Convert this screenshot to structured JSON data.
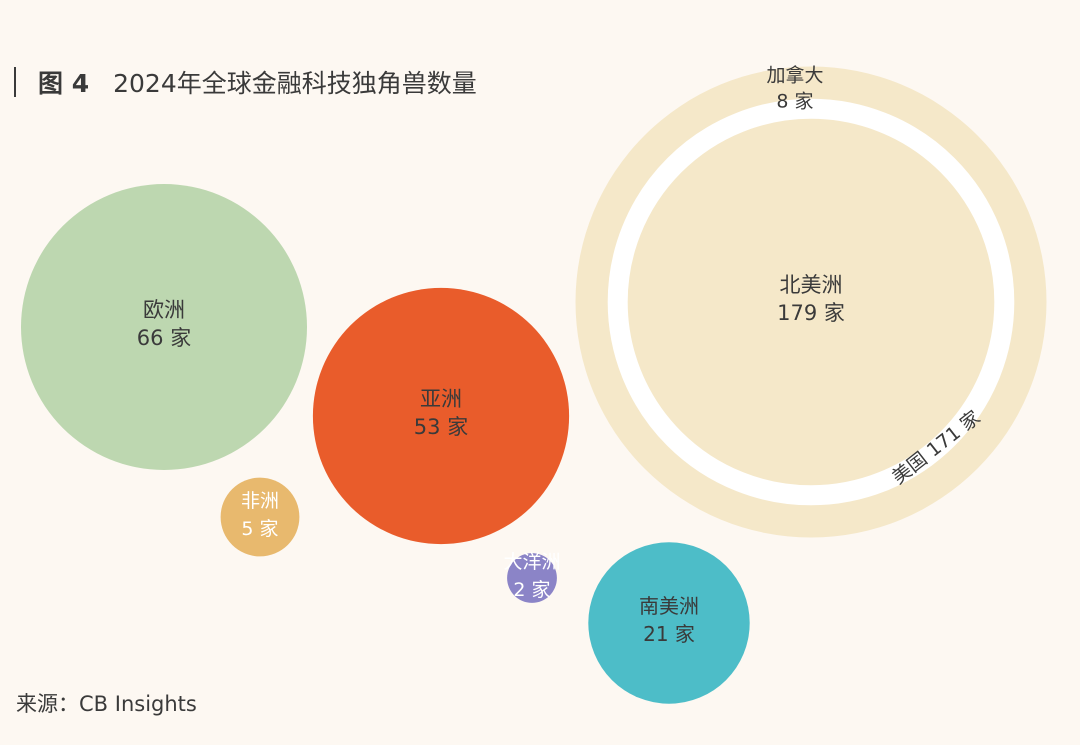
{
  "figure": {
    "label": "图 4",
    "title": "2024年全球金融科技独角兽数量"
  },
  "source": "来源：CB Insights",
  "unit_suffix": "家",
  "chart_data": {
    "type": "bubble",
    "title": "2024年全球金融科技独角兽数量",
    "unit": "家",
    "series": [
      {
        "name": "北美洲",
        "value": 179,
        "color": "#f5e8c9",
        "text_color": "#3a3a3a",
        "breakdown": [
          {
            "name": "美国",
            "value": 171
          },
          {
            "name": "加拿大",
            "value": 8
          }
        ]
      },
      {
        "name": "欧洲",
        "value": 66,
        "color": "#bdd7b0",
        "text_color": "#3a3a3a"
      },
      {
        "name": "亚洲",
        "value": 53,
        "color": "#e95c2b",
        "text_color": "#3a3a3a"
      },
      {
        "name": "南美洲",
        "value": 21,
        "color": "#4dbdc8",
        "text_color": "#3a3a3a"
      },
      {
        "name": "非洲",
        "value": 5,
        "color": "#e8b96e",
        "text_color": "#ffffff"
      },
      {
        "name": "大洋洲",
        "value": 2,
        "color": "#8b84c7",
        "text_color": "#ffffff"
      }
    ]
  }
}
